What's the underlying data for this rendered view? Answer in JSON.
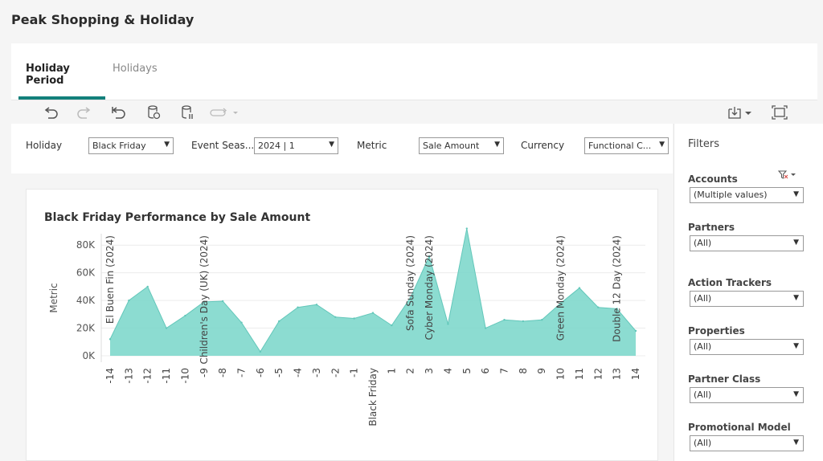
{
  "page": {
    "title": "Peak Shopping & Holiday"
  },
  "tabs": [
    {
      "label": "Holiday Period"
    },
    {
      "label": "Holidays"
    }
  ],
  "toolbar": {
    "icons": [
      "undo-icon",
      "redo-icon",
      "revert-icon",
      "refresh-data-icon",
      "pause-updates-icon",
      "replay-icon",
      "download-icon",
      "fullscreen-icon"
    ]
  },
  "params": {
    "holiday": {
      "label": "Holiday",
      "value": "Black Friday"
    },
    "event_season": {
      "label": "Event Seas...",
      "value": "2024 | 1"
    },
    "metric": {
      "label": "Metric",
      "value": "Sale Amount"
    },
    "currency": {
      "label": "Currency",
      "value": "Functional C..."
    }
  },
  "filters": {
    "title": "Filters",
    "items": [
      {
        "label": "Accounts",
        "value": "(Multiple values)"
      },
      {
        "label": "Partners",
        "value": "(All)"
      },
      {
        "label": "Action Trackers",
        "value": "(All)"
      },
      {
        "label": "Properties",
        "value": "(All)"
      },
      {
        "label": "Partner Class",
        "value": "(All)"
      },
      {
        "label": "Promotional Model",
        "value": "(All)"
      }
    ]
  },
  "chart_data": {
    "type": "area",
    "title": "Black Friday Performance by Sale Amount",
    "ylabel": "Metric",
    "xlabel": "",
    "ylim": [
      0,
      90000
    ],
    "yticks": [
      {
        "value": 0,
        "label": "0K"
      },
      {
        "value": 20000,
        "label": "20K"
      },
      {
        "value": 40000,
        "label": "40K"
      },
      {
        "value": 60000,
        "label": "60K"
      },
      {
        "value": 80000,
        "label": "80K"
      }
    ],
    "categories": [
      "-14",
      "-13",
      "-12",
      "-11",
      "-10",
      "-9",
      "-8",
      "-7",
      "-6",
      "-5",
      "-4",
      "-3",
      "-2",
      "-1",
      "Black Friday",
      "1",
      "2",
      "3",
      "4",
      "5",
      "6",
      "7",
      "8",
      "9",
      "10",
      "11",
      "12",
      "13",
      "14"
    ],
    "values": [
      12000,
      40000,
      50000,
      20000,
      29000,
      39000,
      39500,
      24000,
      3000,
      25000,
      35000,
      37000,
      28000,
      27000,
      31000,
      22000,
      42000,
      72000,
      23000,
      92000,
      20000,
      26000,
      25000,
      26000,
      38000,
      49000,
      35000,
      34000,
      18000
    ],
    "annotations": [
      {
        "category": "-14",
        "label": "El Buen Fin (2024)"
      },
      {
        "category": "-9",
        "label": "Children's Day (UK) (2024)"
      },
      {
        "category": "2",
        "label": "Sofa Sunday (2024)"
      },
      {
        "category": "3",
        "label": "Cyber Monday (2024)"
      },
      {
        "category": "10",
        "label": "Green Monday (2024)"
      },
      {
        "category": "13",
        "label": "Double 12 Day (2024)"
      }
    ],
    "fill_color": "#7fd8cc",
    "line_color": "#63c7ba"
  }
}
